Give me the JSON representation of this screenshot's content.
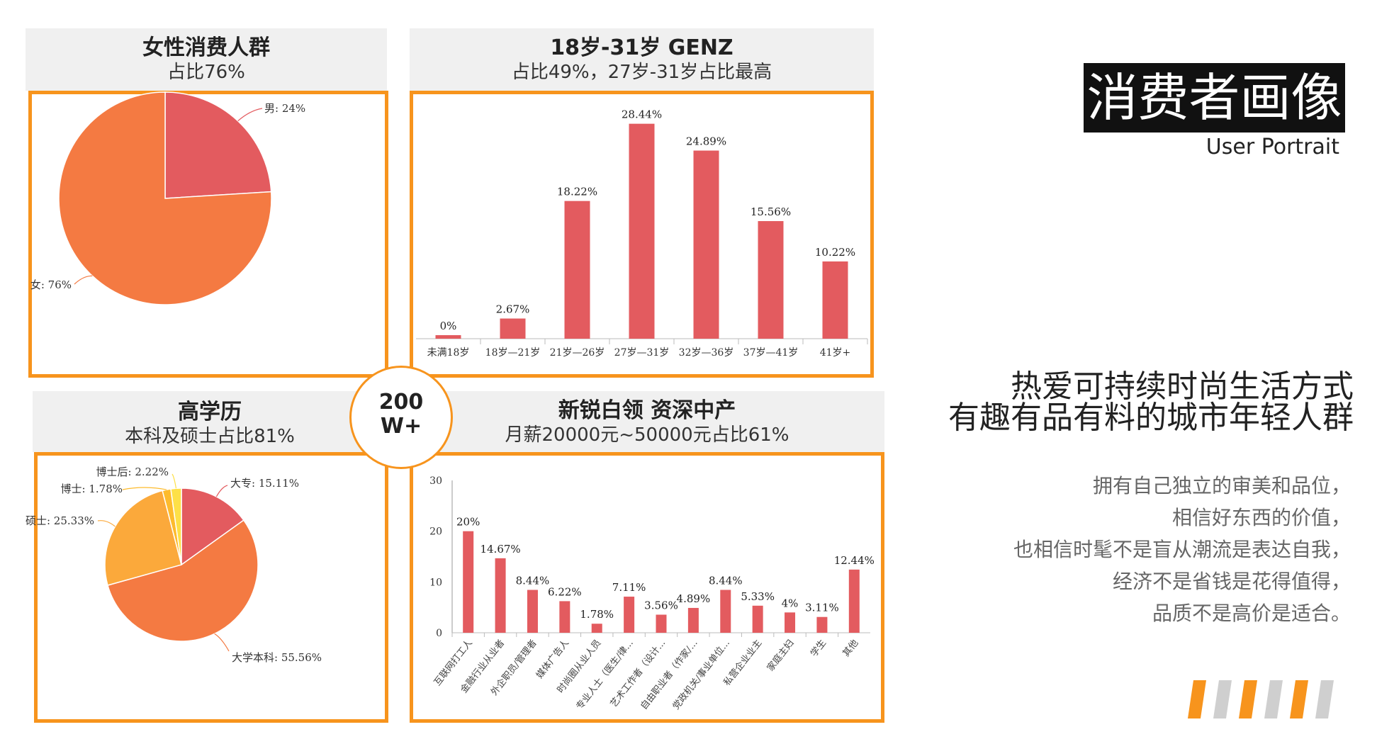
{
  "header": {
    "title": "消费者画像",
    "subtitle": "User Portrait"
  },
  "center_badge": {
    "line1": "200",
    "line2": "W+"
  },
  "slogan": {
    "line1": "热爱可持续时尚生活方式",
    "line2": "有趣有品有料的城市年轻人群"
  },
  "description": [
    "拥有自己独立的审美和品位，",
    "相信好东西的价值，",
    "也相信时髦不是盲从潮流是表达自我，",
    "经济不是省钱是花得值得，",
    "品质不是高价是适合。"
  ],
  "panels": {
    "gender": {
      "title": "女性消费人群",
      "subtitle": "占比76%"
    },
    "age": {
      "title": "18岁-31岁  GENZ",
      "subtitle": "占比49%，27岁-31岁占比最高"
    },
    "education": {
      "title": "高学历",
      "subtitle": "本科及硕士占比81%"
    },
    "occupation": {
      "title": "新锐白领   资深中产",
      "subtitle": "月薪20000元~50000元占比61%"
    }
  },
  "colors": {
    "accent": "#f7941d",
    "bar": "#e35b5f",
    "pie_orange": "#f47a42",
    "pie_red": "#e35b5f",
    "pie_light": "#fba93b",
    "pie_yellow": "#fde047"
  },
  "chart_data": [
    {
      "type": "pie",
      "name": "gender",
      "slices": [
        {
          "label": "男: 24%",
          "value": 24,
          "color": "#e35b5f"
        },
        {
          "label": "女: 76%",
          "value": 76,
          "color": "#f47a42"
        }
      ]
    },
    {
      "type": "bar",
      "name": "age",
      "categories": [
        "未满18岁",
        "18岁—21岁",
        "21岁—26岁",
        "27岁—31岁",
        "32岁—36岁",
        "37岁—41岁",
        "41岁+"
      ],
      "values": [
        0,
        2.67,
        18.22,
        28.44,
        24.89,
        15.56,
        10.22
      ],
      "labels": [
        "0%",
        "2.67%",
        "18.22%",
        "28.44%",
        "24.89%",
        "15.56%",
        "10.22%"
      ],
      "ylim": [
        0,
        30
      ]
    },
    {
      "type": "pie",
      "name": "education",
      "slices": [
        {
          "label": "大专: 15.11%",
          "value": 15.11,
          "color": "#e35b5f"
        },
        {
          "label": "大学本科: 55.56%",
          "value": 55.56,
          "color": "#f47a42"
        },
        {
          "label": "硕士: 25.33%",
          "value": 25.33,
          "color": "#fba93b"
        },
        {
          "label": "博士: 1.78%",
          "value": 1.78,
          "color": "#fdbb2d"
        },
        {
          "label": "博士后: 2.22%",
          "value": 2.22,
          "color": "#fde047"
        }
      ]
    },
    {
      "type": "bar",
      "name": "occupation",
      "categories": [
        "互联网打工人",
        "金融行业从业者",
        "外企职员/管理者",
        "媒体广告人",
        "时尚圈从业人员",
        "专业人士（医生/律...",
        "艺术工作者（设计...",
        "自由职业者（作家/...",
        "党政机关/事业单位...",
        "私营企业业主",
        "家庭主妇",
        "学生",
        "其他"
      ],
      "values": [
        20,
        14.67,
        8.44,
        6.22,
        1.78,
        7.11,
        3.56,
        4.89,
        8.44,
        5.33,
        4,
        3.11,
        12.44
      ],
      "labels": [
        "20%",
        "14.67%",
        "8.44%",
        "6.22%",
        "1.78%",
        "7.11%",
        "3.56%",
        "4.89%",
        "8.44%",
        "5.33%",
        "4%",
        "3.11%",
        "12.44%"
      ],
      "yticks": [
        0,
        10,
        20,
        30
      ],
      "ylim": [
        0,
        30
      ]
    }
  ]
}
